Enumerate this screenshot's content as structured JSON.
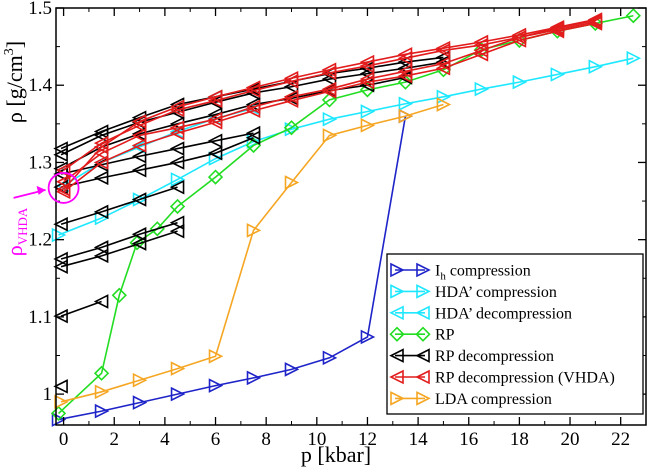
{
  "chart_data": {
    "type": "line",
    "xlabel": "p [kbar]",
    "ylabel_main": "ρ [g/cm",
    "ylabel_sup": "3",
    "ylabel_close": "]",
    "xlim": [
      -0.3,
      23.0
    ],
    "ylim": [
      0.96,
      1.5
    ],
    "xticks": [
      0,
      2,
      4,
      6,
      8,
      10,
      12,
      14,
      16,
      18,
      20,
      22
    ],
    "yticks": [
      1.0,
      1.1,
      1.2,
      1.3,
      1.4,
      1.5
    ],
    "ytick_labels": [
      "1",
      "1.1",
      "1.2",
      "1.3",
      "1.4",
      "1.5"
    ],
    "annotation": {
      "label_main": "ρ",
      "label_sub": "VHDA",
      "color": "#ff00ff",
      "point": [
        0.0,
        1.267
      ]
    },
    "legend_position": "bottom-right",
    "series": [
      {
        "name": "I",
        "name_sub": "h",
        "name_rest": " compression",
        "color": "#1f24c8",
        "marker": "triangle-right",
        "segments": [
          [
            [
              -0.2,
              0.967
            ],
            [
              1.5,
              0.978
            ],
            [
              3.0,
              0.989
            ],
            [
              4.5,
              1.0
            ],
            [
              6.0,
              1.011
            ],
            [
              7.5,
              1.021
            ],
            [
              9.0,
              1.032
            ],
            [
              10.5,
              1.047
            ],
            [
              12.0,
              1.074
            ],
            [
              13.5,
              1.36
            ]
          ]
        ]
      },
      {
        "name": "HDA’ compression",
        "color": "#1ee8ff",
        "marker": "triangle-right",
        "segments": [
          [
            [
              -0.2,
              1.206
            ],
            [
              1.5,
              1.228
            ],
            [
              3.0,
              1.252
            ],
            [
              4.5,
              1.278
            ],
            [
              6.0,
              1.305
            ],
            [
              7.5,
              1.327
            ],
            [
              9.0,
              1.343
            ],
            [
              10.5,
              1.356
            ],
            [
              12.0,
              1.366
            ],
            [
              13.5,
              1.376
            ],
            [
              15.0,
              1.385
            ],
            [
              16.5,
              1.395
            ],
            [
              18.0,
              1.404
            ],
            [
              19.5,
              1.414
            ],
            [
              21.0,
              1.424
            ],
            [
              22.5,
              1.435
            ]
          ]
        ]
      },
      {
        "name": "HDA’ decompression",
        "color": "#1ee8ff",
        "marker": "triangle-left",
        "segments": [
          [
            [
              0.0,
              1.27
            ],
            [
              1.5,
              1.3
            ],
            [
              3.0,
              1.32
            ],
            [
              4.5,
              1.34
            ],
            [
              6.0,
              1.357
            ],
            [
              7.5,
              1.37
            ]
          ]
        ]
      },
      {
        "name": "RP",
        "color": "#22dd22",
        "marker": "diamond",
        "segments": [
          [
            [
              -0.2,
              0.975
            ],
            [
              1.5,
              1.027
            ],
            [
              2.2,
              1.128
            ],
            [
              2.9,
              1.196
            ],
            [
              3.7,
              1.214
            ],
            [
              4.5,
              1.243
            ],
            [
              6.0,
              1.281
            ],
            [
              7.5,
              1.322
            ],
            [
              9.0,
              1.345
            ],
            [
              10.5,
              1.381
            ],
            [
              12.0,
              1.394
            ],
            [
              13.5,
              1.404
            ],
            [
              15.0,
              1.42
            ],
            [
              16.5,
              1.446
            ],
            [
              18.0,
              1.458
            ],
            [
              19.5,
              1.47
            ],
            [
              21.0,
              1.48
            ],
            [
              22.5,
              1.49
            ]
          ]
        ]
      },
      {
        "name": "RP decompression",
        "color": "#000000",
        "marker": "triangle-left",
        "segments": [
          [
            [
              -0.1,
              1.01
            ]
          ],
          [
            [
              -0.1,
              1.101
            ],
            [
              1.5,
              1.12
            ]
          ],
          [
            [
              -0.1,
              1.165
            ],
            [
              1.5,
              1.179
            ],
            [
              3.0,
              1.195
            ],
            [
              4.5,
              1.211
            ]
          ],
          [
            [
              -0.1,
              1.175
            ],
            [
              1.5,
              1.19
            ],
            [
              3.0,
              1.207
            ],
            [
              4.5,
              1.222
            ]
          ],
          [
            [
              -0.1,
              1.22
            ],
            [
              1.5,
              1.236
            ],
            [
              3.0,
              1.252
            ],
            [
              4.5,
              1.268
            ]
          ],
          [
            [
              -0.1,
              1.268
            ],
            [
              1.5,
              1.28
            ],
            [
              3.0,
              1.29
            ],
            [
              4.5,
              1.3
            ],
            [
              6.0,
              1.312
            ],
            [
              7.5,
              1.332
            ]
          ],
          [
            [
              -0.1,
              1.285
            ],
            [
              1.5,
              1.297
            ],
            [
              3.0,
              1.308
            ],
            [
              4.5,
              1.318
            ],
            [
              6.0,
              1.328
            ],
            [
              7.5,
              1.338
            ]
          ],
          [
            [
              -0.1,
              1.292
            ],
            [
              1.5,
              1.32
            ],
            [
              3.0,
              1.337
            ],
            [
              4.5,
              1.35
            ],
            [
              6.0,
              1.362
            ],
            [
              7.5,
              1.375
            ],
            [
              9.0,
              1.383
            ],
            [
              10.5,
              1.393
            ],
            [
              12.0,
              1.4
            ],
            [
              13.5,
              1.41
            ]
          ],
          [
            [
              -0.1,
              1.31
            ],
            [
              1.5,
              1.335
            ],
            [
              3.0,
              1.352
            ],
            [
              4.5,
              1.365
            ],
            [
              6.0,
              1.378
            ],
            [
              7.5,
              1.39
            ],
            [
              9.0,
              1.398
            ],
            [
              10.5,
              1.408
            ],
            [
              12.0,
              1.415
            ],
            [
              13.5,
              1.422
            ],
            [
              15.0,
              1.43
            ]
          ],
          [
            [
              -0.1,
              1.318
            ],
            [
              1.5,
              1.34
            ],
            [
              3.0,
              1.358
            ],
            [
              4.5,
              1.375
            ],
            [
              6.0,
              1.385
            ],
            [
              7.5,
              1.395
            ],
            [
              9.0,
              1.405
            ],
            [
              10.5,
              1.415
            ],
            [
              12.0,
              1.422
            ],
            [
              13.5,
              1.43
            ],
            [
              15.0,
              1.436
            ]
          ]
        ]
      },
      {
        "name": "RP decompression (VHDA)",
        "color": "#e21c1c",
        "marker": "triangle-left",
        "segments": [
          [
            [
              0.0,
              1.262
            ],
            [
              1.5,
              1.3
            ],
            [
              3.0,
              1.322
            ],
            [
              4.5,
              1.338
            ],
            [
              6.0,
              1.352
            ],
            [
              7.5,
              1.367
            ],
            [
              9.0,
              1.38
            ],
            [
              10.5,
              1.392
            ],
            [
              12.0,
              1.404
            ],
            [
              13.5,
              1.412
            ],
            [
              15.0,
              1.422
            ],
            [
              16.5,
              1.44
            ],
            [
              18.0,
              1.458
            ],
            [
              19.5,
              1.47
            ],
            [
              21.0,
              1.48
            ]
          ],
          [
            [
              0.0,
              1.275
            ],
            [
              1.5,
              1.312
            ],
            [
              3.0,
              1.335
            ],
            [
              4.5,
              1.345
            ],
            [
              6.0,
              1.356
            ],
            [
              7.5,
              1.372
            ],
            [
              9.0,
              1.385
            ],
            [
              10.5,
              1.395
            ],
            [
              12.0,
              1.408
            ],
            [
              13.5,
              1.418
            ],
            [
              15.0,
              1.428
            ],
            [
              16.5,
              1.445
            ],
            [
              18.0,
              1.462
            ],
            [
              19.5,
              1.474
            ],
            [
              21.0,
              1.484
            ]
          ],
          [
            [
              0.0,
              1.29
            ],
            [
              1.5,
              1.325
            ],
            [
              3.0,
              1.348
            ],
            [
              4.5,
              1.368
            ],
            [
              6.0,
              1.38
            ],
            [
              7.5,
              1.393
            ],
            [
              9.0,
              1.405
            ],
            [
              10.5,
              1.416
            ],
            [
              12.0,
              1.425
            ],
            [
              13.5,
              1.435
            ],
            [
              15.0,
              1.445
            ],
            [
              16.5,
              1.452
            ],
            [
              18.0,
              1.462
            ],
            [
              19.5,
              1.472
            ],
            [
              21.0,
              1.482
            ]
          ],
          [
            [
              0.0,
              1.265
            ],
            [
              1.5,
              1.32
            ],
            [
              3.0,
              1.353
            ],
            [
              4.5,
              1.372
            ],
            [
              6.0,
              1.385
            ],
            [
              7.5,
              1.397
            ],
            [
              9.0,
              1.409
            ],
            [
              10.5,
              1.42
            ],
            [
              12.0,
              1.43
            ],
            [
              13.5,
              1.44
            ],
            [
              15.0,
              1.448
            ],
            [
              16.5,
              1.456
            ],
            [
              18.0,
              1.465
            ],
            [
              19.5,
              1.475
            ],
            [
              21.0,
              1.485
            ]
          ]
        ]
      },
      {
        "name": "LDA compression",
        "color": "#f5a623",
        "marker": "triangle-right",
        "segments": [
          [
            [
              -0.1,
              0.99
            ],
            [
              1.5,
              1.003
            ],
            [
              3.0,
              1.018
            ],
            [
              4.5,
              1.033
            ],
            [
              6.0,
              1.049
            ],
            [
              7.5,
              1.212
            ],
            [
              9.0,
              1.274
            ],
            [
              10.5,
              1.335
            ],
            [
              12.0,
              1.348
            ],
            [
              13.5,
              1.36
            ],
            [
              15.0,
              1.375
            ]
          ]
        ]
      }
    ]
  }
}
